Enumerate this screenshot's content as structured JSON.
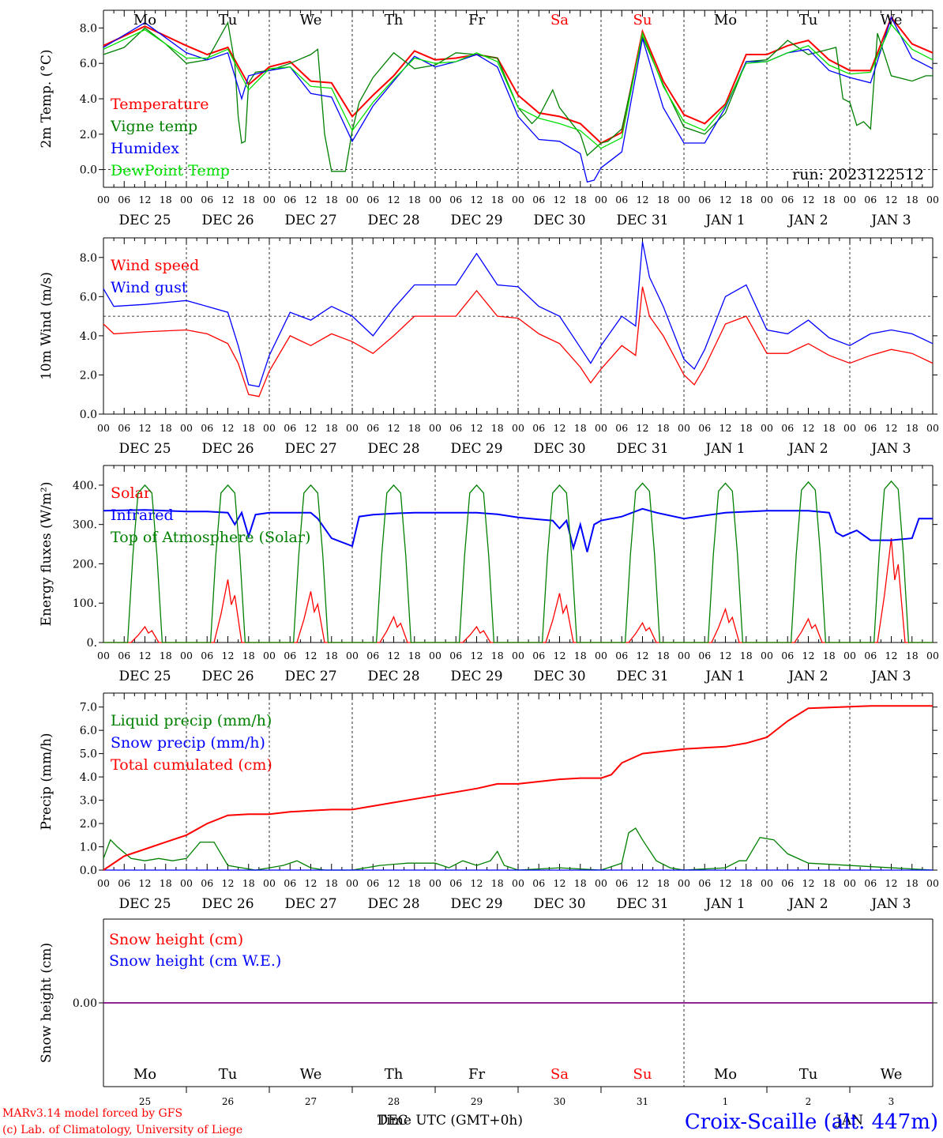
{
  "run_label": "run: 2023122512",
  "footer": {
    "credit_line1": "MARv3.14 model forced by GFS",
    "credit_line2": "(c) Lab. of Climatology, University of Liege",
    "time_axis_label": "Time UTC (GMT+0h)",
    "month_overlay": "DEC",
    "month_overlay2": "JAN",
    "station": "Croix-Scaille (alt. 447m)"
  },
  "colors": {
    "red": "#ff0000",
    "green": "#008000",
    "blue": "#0000ff",
    "lightgreen": "#00e000",
    "purple": "#800080"
  },
  "days": [
    {
      "name": "Mo",
      "date": "DEC 25",
      "num": "25",
      "weekend": false
    },
    {
      "name": "Tu",
      "date": "DEC 26",
      "num": "26",
      "weekend": false
    },
    {
      "name": "We",
      "date": "DEC 27",
      "num": "27",
      "weekend": false
    },
    {
      "name": "Th",
      "date": "DEC 28",
      "num": "28",
      "weekend": false
    },
    {
      "name": "Fr",
      "date": "DEC 29",
      "num": "29",
      "weekend": false
    },
    {
      "name": "Sa",
      "date": "DEC 30",
      "num": "30",
      "weekend": true
    },
    {
      "name": "Su",
      "date": "DEC 31",
      "num": "31",
      "weekend": true
    },
    {
      "name": "Mo",
      "date": "JAN  1",
      "num": "1",
      "weekend": false
    },
    {
      "name": "Tu",
      "date": "JAN  2",
      "num": "2",
      "weekend": false
    },
    {
      "name": "We",
      "date": "JAN  3",
      "num": "3",
      "weekend": false
    }
  ],
  "hour_labels": [
    "00",
    "06",
    "12",
    "18"
  ],
  "chart_data": [
    {
      "id": "temperature",
      "type": "line",
      "ylabel": "2m Temp. (°C)",
      "ylim": [
        -1,
        9
      ],
      "yticks": [
        0,
        2,
        4,
        6,
        8
      ],
      "ytick_labels": [
        "0.0",
        "2.0",
        "4.0",
        "6.0",
        "8.0"
      ],
      "reference_line": 0,
      "x_unit": "hours since 2023-12-25 00 UTC",
      "series": [
        {
          "name": "Temperature",
          "color": "#ff0000",
          "main": true,
          "x": [
            0,
            12,
            24,
            30,
            36,
            42,
            48,
            54,
            60,
            66,
            72,
            78,
            84,
            90,
            96,
            102,
            108,
            114,
            120,
            126,
            132,
            138,
            144,
            150,
            156,
            162,
            168,
            174,
            180,
            186,
            192,
            198,
            204,
            210,
            216,
            222,
            228,
            234,
            240
          ],
          "y": [
            7.0,
            8.1,
            7.0,
            6.5,
            6.9,
            4.8,
            5.8,
            6.1,
            5.0,
            4.9,
            3.0,
            4.2,
            5.3,
            6.7,
            6.2,
            6.3,
            6.5,
            6.3,
            4.2,
            3.2,
            3.0,
            2.6,
            1.5,
            2.1,
            7.8,
            5.0,
            3.1,
            2.6,
            3.7,
            6.5,
            6.5,
            7.0,
            7.3,
            6.2,
            5.6,
            5.6,
            8.6,
            7.1,
            6.6
          ]
        },
        {
          "name": "Vigne temp",
          "color": "#008000",
          "main": false,
          "x": [
            0,
            6,
            12,
            18,
            24,
            30,
            36,
            38,
            39,
            40,
            41,
            42,
            44,
            48,
            54,
            60,
            62,
            64,
            66,
            68,
            70,
            72,
            74,
            78,
            84,
            90,
            96,
            102,
            108,
            114,
            120,
            124,
            126,
            130,
            132,
            138,
            140,
            144,
            146,
            150,
            156,
            162,
            168,
            174,
            180,
            186,
            192,
            198,
            204,
            210,
            212,
            214,
            216,
            218,
            220,
            222,
            224,
            226,
            228,
            234,
            238,
            240
          ],
          "y": [
            6.5,
            6.9,
            8.0,
            7.1,
            6.0,
            6.2,
            8.3,
            6.0,
            3.0,
            1.5,
            1.6,
            4.9,
            5.5,
            5.6,
            6.0,
            6.5,
            6.8,
            2.0,
            -0.1,
            -0.1,
            -0.1,
            2.2,
            3.8,
            5.2,
            6.6,
            5.7,
            5.9,
            6.6,
            6.5,
            6.3,
            3.5,
            2.6,
            3.0,
            4.5,
            3.5,
            2.0,
            0.8,
            1.5,
            1.6,
            2.3,
            7.5,
            4.8,
            2.4,
            2.0,
            3.2,
            6.1,
            6.2,
            7.3,
            6.5,
            6.8,
            6.9,
            4.0,
            3.8,
            2.5,
            2.7,
            2.3,
            7.7,
            6.5,
            5.3,
            5.0,
            5.3,
            5.3
          ]
        },
        {
          "name": "Humidex",
          "color": "#0000ff",
          "main": false,
          "x": [
            0,
            12,
            24,
            30,
            36,
            40,
            42,
            48,
            54,
            60,
            66,
            72,
            78,
            84,
            90,
            96,
            102,
            108,
            114,
            120,
            126,
            132,
            138,
            140,
            142,
            144,
            150,
            156,
            162,
            168,
            174,
            180,
            186,
            192,
            198,
            204,
            210,
            216,
            222,
            228,
            234,
            240
          ],
          "y": [
            6.9,
            8.3,
            6.6,
            6.2,
            6.6,
            4.0,
            5.3,
            5.6,
            5.8,
            4.3,
            4.1,
            1.6,
            3.6,
            5.0,
            6.4,
            5.8,
            6.1,
            6.5,
            5.8,
            3.0,
            1.7,
            1.6,
            0.9,
            -0.7,
            -0.6,
            0.1,
            1.0,
            7.4,
            3.5,
            1.5,
            1.5,
            3.5,
            6.1,
            6.1,
            6.6,
            6.8,
            5.6,
            5.2,
            4.9,
            8.6,
            6.3,
            5.7
          ]
        },
        {
          "name": "DewPoint Temp",
          "color": "#00e000",
          "main": false,
          "x": [
            0,
            12,
            24,
            30,
            36,
            42,
            48,
            54,
            60,
            66,
            72,
            78,
            84,
            90,
            96,
            102,
            108,
            114,
            120,
            126,
            132,
            138,
            144,
            150,
            156,
            162,
            168,
            174,
            180,
            186,
            192,
            198,
            204,
            210,
            216,
            222,
            228,
            234,
            240
          ],
          "y": [
            6.8,
            7.9,
            6.3,
            6.3,
            6.8,
            4.5,
            5.7,
            5.8,
            4.7,
            4.6,
            2.2,
            3.8,
            5.1,
            6.3,
            6.0,
            6.1,
            6.6,
            6.1,
            3.5,
            2.9,
            2.6,
            2.2,
            1.2,
            1.8,
            7.7,
            4.7,
            2.7,
            2.2,
            3.6,
            6.0,
            6.1,
            6.6,
            7.0,
            5.9,
            5.4,
            5.5,
            8.2,
            6.8,
            6.2
          ]
        }
      ]
    },
    {
      "id": "wind",
      "type": "line",
      "ylabel": "10m Wind (m/s)",
      "ylim": [
        0,
        9
      ],
      "yticks": [
        0,
        2,
        4,
        6,
        8
      ],
      "ytick_labels": [
        "0.0",
        "2.0",
        "4.0",
        "6.0",
        "8.0"
      ],
      "reference_line": 5,
      "x_unit": "hours since 2023-12-25 00 UTC",
      "series": [
        {
          "name": "Wind speed",
          "color": "#ff0000",
          "main": false,
          "x": [
            0,
            3,
            12,
            24,
            30,
            36,
            39,
            42,
            45,
            48,
            54,
            60,
            66,
            72,
            78,
            84,
            90,
            96,
            102,
            108,
            114,
            120,
            126,
            132,
            138,
            141,
            144,
            150,
            154,
            156,
            158,
            162,
            168,
            171,
            174,
            180,
            186,
            192,
            198,
            204,
            210,
            216,
            222,
            228,
            234,
            240
          ],
          "y": [
            4.6,
            4.1,
            4.2,
            4.3,
            4.1,
            3.6,
            2.6,
            1.0,
            0.9,
            2.2,
            4.0,
            3.5,
            4.1,
            3.7,
            3.1,
            4.0,
            5.0,
            5.0,
            5.0,
            6.3,
            5.0,
            4.9,
            4.1,
            3.6,
            2.4,
            1.6,
            2.3,
            3.5,
            3.0,
            6.5,
            5.0,
            4.0,
            2.0,
            1.5,
            2.4,
            4.6,
            5.0,
            3.1,
            3.1,
            3.6,
            3.0,
            2.6,
            3.0,
            3.3,
            3.1,
            2.6
          ]
        },
        {
          "name": "Wind gust",
          "color": "#0000ff",
          "main": false,
          "x": [
            0,
            3,
            12,
            24,
            30,
            36,
            39,
            42,
            45,
            48,
            54,
            60,
            66,
            72,
            78,
            84,
            90,
            96,
            102,
            108,
            114,
            120,
            126,
            132,
            138,
            141,
            144,
            150,
            154,
            156,
            158,
            162,
            168,
            171,
            174,
            180,
            186,
            192,
            198,
            204,
            210,
            216,
            222,
            228,
            234,
            240
          ],
          "y": [
            6.4,
            5.5,
            5.6,
            5.8,
            5.5,
            5.2,
            3.5,
            1.5,
            1.4,
            3.0,
            5.2,
            4.8,
            5.5,
            5.0,
            4.0,
            5.4,
            6.6,
            6.6,
            6.6,
            8.2,
            6.6,
            6.5,
            5.5,
            5.0,
            3.4,
            2.6,
            3.5,
            5.0,
            4.5,
            8.8,
            7.0,
            5.5,
            2.8,
            2.3,
            3.3,
            6.0,
            6.6,
            4.3,
            4.1,
            4.8,
            3.9,
            3.5,
            4.1,
            4.3,
            4.1,
            3.6
          ]
        }
      ]
    },
    {
      "id": "energy",
      "type": "line",
      "ylabel": "Energy fluxes (W/m²)",
      "ylim": [
        0,
        450
      ],
      "yticks": [
        0,
        100,
        200,
        300,
        400
      ],
      "ytick_labels": [
        "0.",
        "100.",
        "200.",
        "300.",
        "400."
      ],
      "x_unit": "hours since 2023-12-25 00 UTC",
      "toa_peak_per_day": [
        400,
        400,
        400,
        400,
        400,
        400,
        405,
        405,
        408,
        410
      ],
      "solar_peak_per_day": [
        40,
        160,
        130,
        65,
        40,
        125,
        50,
        85,
        60,
        265
      ],
      "series": [
        {
          "name": "Solar",
          "color": "#ff0000",
          "main": false
        },
        {
          "name": "Infrared",
          "color": "#0000ff",
          "main": true,
          "x": [
            0,
            12,
            24,
            30,
            36,
            38,
            40,
            42,
            44,
            48,
            60,
            62,
            66,
            72,
            74,
            78,
            84,
            90,
            96,
            102,
            108,
            114,
            120,
            126,
            130,
            132,
            134,
            136,
            138,
            140,
            142,
            144,
            150,
            156,
            160,
            168,
            180,
            192,
            198,
            204,
            210,
            212,
            214,
            218,
            222,
            228,
            234,
            236,
            240
          ],
          "y": [
            335,
            337,
            333,
            333,
            330,
            300,
            330,
            270,
            325,
            330,
            330,
            315,
            265,
            245,
            320,
            325,
            328,
            330,
            330,
            330,
            330,
            326,
            318,
            313,
            310,
            290,
            310,
            240,
            300,
            230,
            300,
            310,
            320,
            340,
            330,
            315,
            330,
            335,
            335,
            335,
            330,
            280,
            270,
            285,
            260,
            260,
            265,
            315,
            315
          ]
        },
        {
          "name": "Top of Atmosphere (Solar)",
          "color": "#008000",
          "main": false
        }
      ]
    },
    {
      "id": "precip",
      "type": "line",
      "ylabel": "Precip (mm/h)",
      "ylim": [
        0,
        7.6
      ],
      "yticks": [
        0,
        1,
        2,
        3,
        4,
        5,
        6,
        7
      ],
      "ytick_labels": [
        "0.0",
        "1.0",
        "2.0",
        "3.0",
        "4.0",
        "5.0",
        "6.0",
        "7.0"
      ],
      "x_unit": "hours since 2023-12-25 00 UTC",
      "series": [
        {
          "name": "Liquid precip (mm/h)",
          "color": "#008000",
          "main": false,
          "x": [
            0,
            2,
            4,
            8,
            12,
            16,
            20,
            24,
            28,
            32,
            36,
            40,
            44,
            48,
            52,
            56,
            60,
            64,
            72,
            80,
            88,
            96,
            100,
            104,
            108,
            112,
            114,
            116,
            120,
            132,
            144,
            150,
            152,
            154,
            156,
            160,
            164,
            168,
            180,
            184,
            186,
            190,
            194,
            198,
            204,
            240
          ],
          "y": [
            0.5,
            1.3,
            1.0,
            0.5,
            0.4,
            0.5,
            0.4,
            0.5,
            1.2,
            1.2,
            0.2,
            0.1,
            0,
            0.1,
            0.2,
            0.4,
            0.1,
            0,
            0,
            0.2,
            0.3,
            0.3,
            0.1,
            0.4,
            0.2,
            0.4,
            0.8,
            0.2,
            0,
            0.1,
            0,
            0.3,
            1.6,
            1.8,
            1.3,
            0.4,
            0.1,
            0,
            0.1,
            0.4,
            0.4,
            1.4,
            1.3,
            0.7,
            0.3,
            0
          ]
        },
        {
          "name": "Snow precip (mm/h)",
          "color": "#0000ff",
          "main": false,
          "x": [
            0,
            240
          ],
          "y": [
            0,
            0
          ]
        },
        {
          "name": "Total cumulated (cm)",
          "color": "#ff0000",
          "main": true,
          "x": [
            0,
            6,
            12,
            18,
            24,
            30,
            36,
            42,
            48,
            54,
            60,
            66,
            72,
            84,
            96,
            108,
            114,
            120,
            126,
            132,
            138,
            144,
            147,
            150,
            156,
            168,
            180,
            186,
            192,
            198,
            204,
            222,
            240
          ],
          "y": [
            0,
            0.6,
            0.9,
            1.2,
            1.5,
            2.0,
            2.35,
            2.4,
            2.4,
            2.5,
            2.55,
            2.6,
            2.6,
            2.9,
            3.2,
            3.5,
            3.7,
            3.7,
            3.8,
            3.9,
            3.95,
            3.95,
            4.1,
            4.6,
            5.0,
            5.2,
            5.3,
            5.45,
            5.7,
            6.4,
            6.95,
            7.05,
            7.05
          ]
        }
      ]
    },
    {
      "id": "snow",
      "type": "line",
      "ylabel": "Snow height (cm)",
      "ylim": [
        -1,
        1
      ],
      "yticks": [
        0
      ],
      "ytick_labels": [
        "0.00"
      ],
      "x_unit": "hours since 2023-12-25 00 UTC",
      "series": [
        {
          "name": "Snow height (cm)",
          "color": "#ff0000",
          "main": false,
          "x": [
            0,
            240
          ],
          "y": [
            0,
            0
          ]
        },
        {
          "name": "Snow height (cm W.E.)",
          "color": "#0000ff",
          "main": false,
          "x": [
            0,
            240
          ],
          "y": [
            0,
            0
          ]
        }
      ]
    }
  ]
}
